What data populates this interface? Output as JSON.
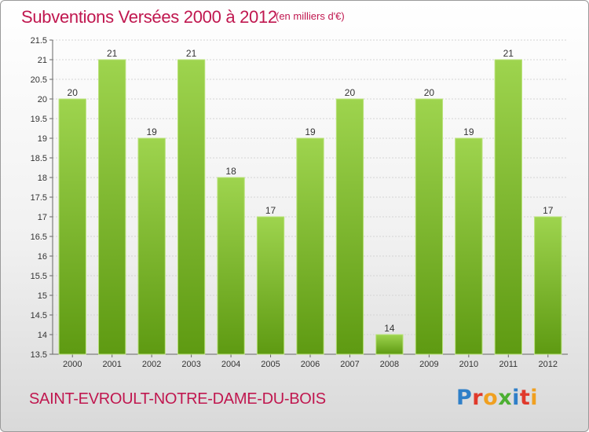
{
  "header": {
    "title": "Subventions Versées 2000 à 2012",
    "unit": "(en milliers d'€)"
  },
  "footer": {
    "commune": "SAINT-EVROULT-NOTRE-DAME-DU-BOIS",
    "logo": "Proxiti"
  },
  "colors": {
    "title": "#c0174f",
    "bar_top": "#9ed44e",
    "bar_bottom": "#5e9a12",
    "logo_letters": [
      "#2f7fc8",
      "#e0392b",
      "#f0a020",
      "#4caf32",
      "#2f7fc8",
      "#e0392b",
      "#f0a020"
    ]
  },
  "chart_data": {
    "type": "bar",
    "title": "Subventions Versées 2000 à 2012",
    "subtitle": "(en milliers d'€)",
    "xlabel": "",
    "ylabel": "",
    "categories": [
      "2000",
      "2001",
      "2002",
      "2003",
      "2004",
      "2005",
      "2006",
      "2007",
      "2008",
      "2009",
      "2010",
      "2011",
      "2012"
    ],
    "values": [
      20,
      21,
      19,
      21,
      18,
      17,
      19,
      20,
      14,
      20,
      19,
      21,
      17
    ],
    "data_labels": [
      "20",
      "21",
      "19",
      "21",
      "18",
      "17",
      "19",
      "20",
      "14",
      "20",
      "19",
      "21",
      "17"
    ],
    "ylim": [
      13.5,
      21.5
    ],
    "yticks": [
      13.5,
      14,
      14.5,
      15,
      15.5,
      16,
      16.5,
      17,
      17.5,
      18,
      18.5,
      19,
      19.5,
      20,
      20.5,
      21,
      21.5
    ],
    "ytick_labels": [
      "13.5",
      "14",
      "14.5",
      "15",
      "15.5",
      "16",
      "16.5",
      "17",
      "17.5",
      "18",
      "18.5",
      "19",
      "19.5",
      "20",
      "20.5",
      "21",
      "21.5"
    ],
    "grid": true,
    "legend": "none"
  }
}
